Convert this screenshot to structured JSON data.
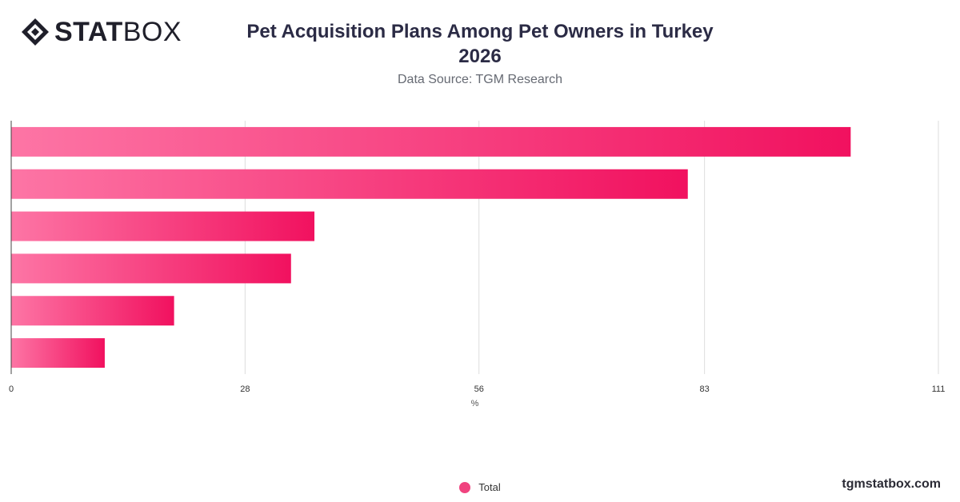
{
  "header": {
    "logo_text_bold": "STAT",
    "logo_text_light": "BOX",
    "title_line1": "Pet Acquisition Plans Among Pet Owners in Turkey",
    "title_line2": "2026",
    "subtitle": "Data Source: TGM Research"
  },
  "footer": {
    "legend_label": "Total",
    "brand": "tgmstatbox.com"
  },
  "colors": {
    "bar_start": "#fd75a5",
    "bar_end": "#f1115f",
    "grid": "#dddddd",
    "axis": "#444444",
    "legend_dot": "#f0437f"
  },
  "chart_data": {
    "type": "bar",
    "orientation": "horizontal",
    "title": "Pet Acquisition Plans Among Pet Owners in Turkey 2026",
    "subtitle": "Data Source: TGM Research",
    "xlabel": "%",
    "ylabel": "",
    "xlim": [
      0,
      111
    ],
    "x_ticks": [
      0,
      28,
      56,
      83,
      111
    ],
    "grid": true,
    "legend_position": "bottom",
    "series": [
      {
        "name": "Total",
        "values": [
          100.5,
          81,
          36.3,
          33.5,
          19.5,
          11.2
        ]
      }
    ]
  }
}
